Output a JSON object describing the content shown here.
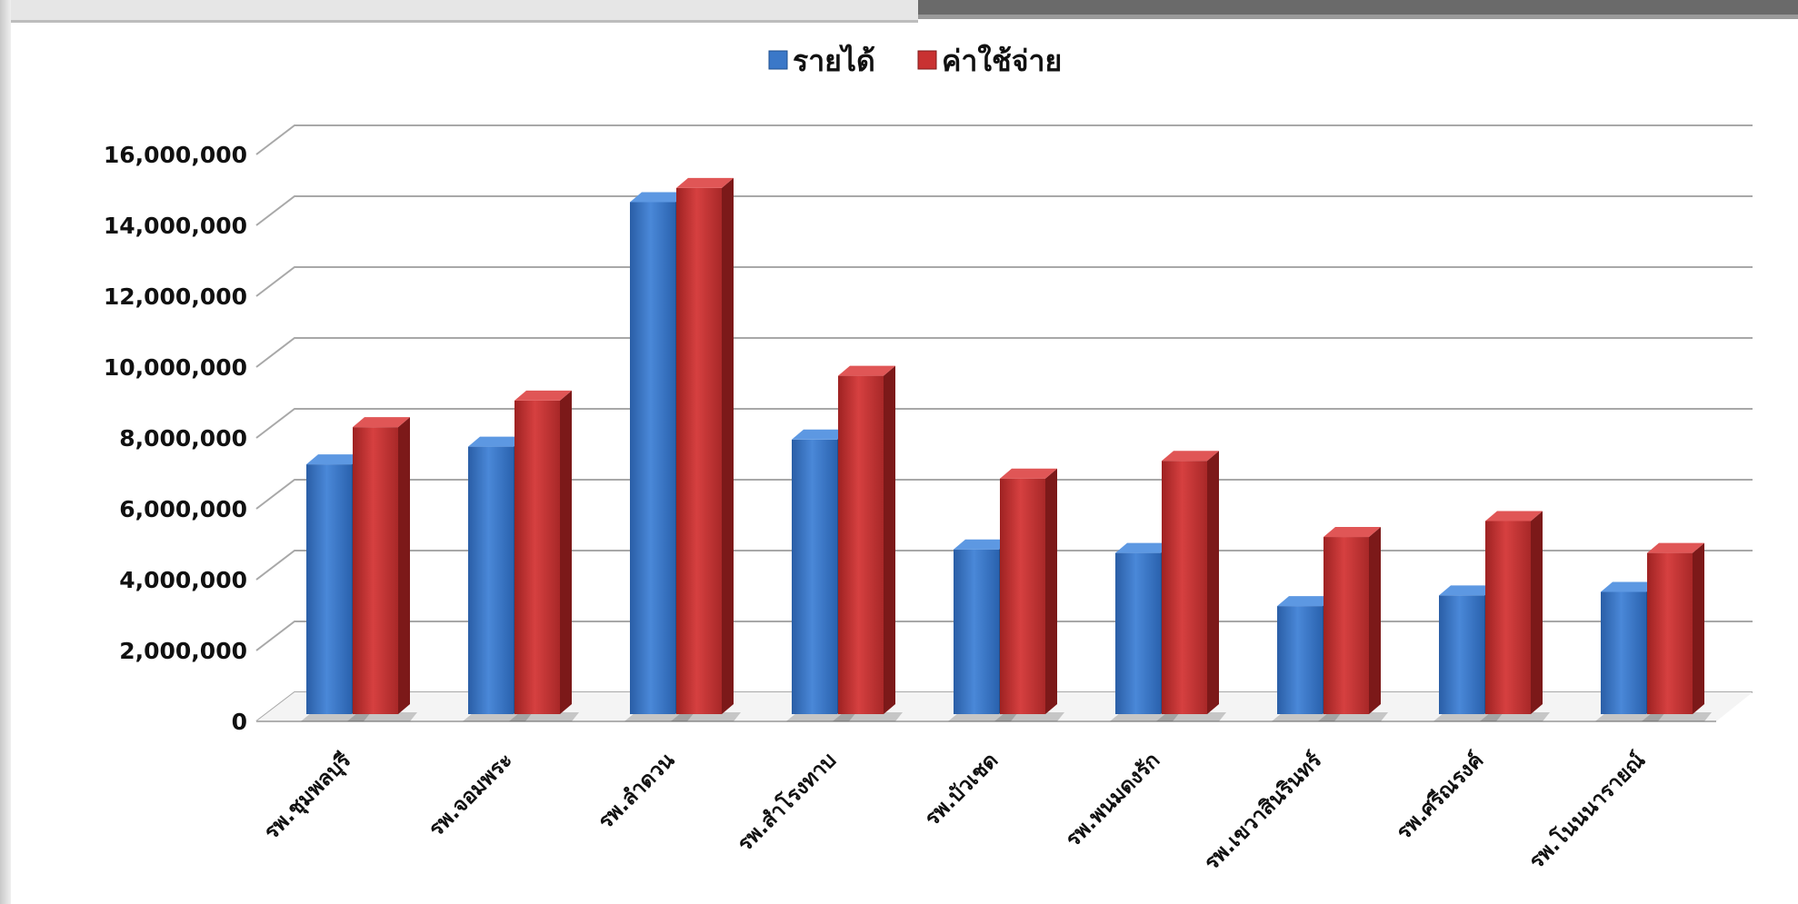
{
  "chart_data": {
    "type": "bar",
    "style": "3d-clustered-column",
    "categories": [
      "รพ.ชุมพลบุรี",
      "รพ.จอมพระ",
      "รพ.ลำดวน",
      "รพ.สำโรงทาบ",
      "รพ.บัวเชด",
      "รพ.พนมดงรัก",
      "รพ.เขวาสินรินทร์",
      "รพ.ศรีณรงค์",
      "รพ.โนนนารายณ์"
    ],
    "series": [
      {
        "name": "รายได้",
        "color": "#3b78c8",
        "values": [
          7100000,
          7600000,
          14500000,
          7800000,
          4700000,
          4600000,
          3100000,
          3400000,
          3500000
        ]
      },
      {
        "name": "ค่าใช้จ่าย",
        "color": "#c93232",
        "values": [
          8150000,
          8900000,
          14900000,
          9600000,
          6700000,
          7200000,
          5050000,
          5500000,
          4600000
        ]
      }
    ],
    "y_ticks": [
      "0",
      "2,000,000",
      "4,000,000",
      "6,000,000",
      "8,000,000",
      "10,000,000",
      "12,000,000",
      "14,000,000",
      "16,000,000"
    ],
    "ylim": [
      0,
      16000000
    ],
    "grid": true,
    "legend_position": "top-center",
    "title": "",
    "xlabel": "",
    "ylabel": ""
  }
}
